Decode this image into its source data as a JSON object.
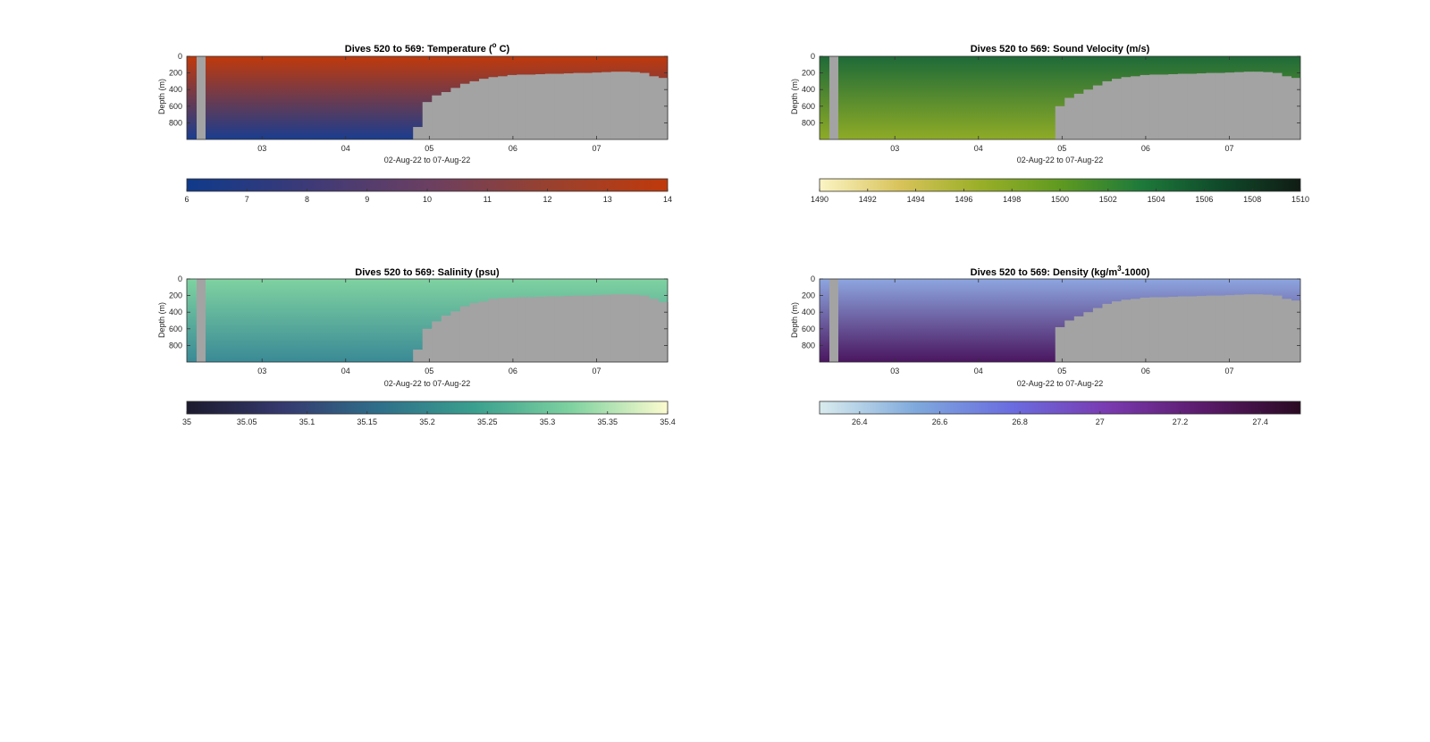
{
  "chart_data": [
    {
      "type": "heatmap",
      "title_main": "Dives 520 to 569: Temperature (",
      "title_sup": "o",
      "title_tail": " C)",
      "ylabel": "Depth (m)",
      "xlabel": "02-Aug-22 to 07-Aug-22",
      "x_ticks": [
        "03",
        "04",
        "05",
        "06",
        "07"
      ],
      "x_range": [
        2.1,
        7.85
      ],
      "y_ticks": [
        "0",
        "200",
        "400",
        "600",
        "800"
      ],
      "y_range": [
        0,
        1000
      ],
      "colorbar": {
        "ticks": [
          "6",
          "7",
          "8",
          "9",
          "10",
          "11",
          "12",
          "13",
          "14"
        ],
        "range": [
          6,
          14
        ],
        "colors": [
          "#0f3a8a",
          "#3d3a78",
          "#6a3f62",
          "#98412f",
          "#c0390b"
        ]
      },
      "surface_color": "#c0390b",
      "deep_color": "#1a3d8f",
      "no_data_color": "#a3a3a3",
      "profile_bottom_depth": [
        1000,
        1000,
        1000,
        1000,
        1000,
        1000,
        1000,
        1000,
        1000,
        1000,
        1000,
        1000,
        1000,
        1000,
        1000,
        1000,
        1000,
        1000,
        1000,
        1000,
        1000,
        1000,
        1000,
        1000,
        850,
        550,
        470,
        430,
        380,
        330,
        300,
        270,
        250,
        240,
        225,
        220,
        220,
        215,
        210,
        210,
        205,
        200,
        200,
        195,
        190,
        185,
        185,
        190,
        200,
        240,
        260
      ]
    },
    {
      "type": "heatmap",
      "title_main": "Dives 520 to 569: Sound Velocity (m/s)",
      "title_sup": "",
      "title_tail": "",
      "ylabel": "Depth (m)",
      "xlabel": "02-Aug-22 to 07-Aug-22",
      "x_ticks": [
        "03",
        "04",
        "05",
        "06",
        "07"
      ],
      "x_range": [
        2.1,
        7.85
      ],
      "y_ticks": [
        "0",
        "200",
        "400",
        "600",
        "800"
      ],
      "y_range": [
        0,
        1000
      ],
      "colorbar": {
        "ticks": [
          "1490",
          "1492",
          "1494",
          "1496",
          "1498",
          "1500",
          "1502",
          "1504",
          "1506",
          "1508",
          "1510"
        ],
        "range": [
          1490,
          1510
        ],
        "colors": [
          "#fbf4c4",
          "#d8c35a",
          "#9aaf28",
          "#5f9a20",
          "#1e7a3a",
          "#0f4a2a",
          "#101c14"
        ]
      },
      "surface_color": "#1e6a38",
      "deep_color": "#8eab26",
      "no_data_color": "#a3a3a3",
      "profile_bottom_depth": [
        1000,
        1000,
        1000,
        1000,
        1000,
        1000,
        1000,
        1000,
        1000,
        1000,
        1000,
        1000,
        1000,
        1000,
        1000,
        1000,
        1000,
        1000,
        1000,
        1000,
        1000,
        1000,
        1000,
        1000,
        1000,
        600,
        500,
        450,
        400,
        350,
        300,
        270,
        250,
        240,
        225,
        220,
        220,
        215,
        210,
        210,
        205,
        200,
        200,
        195,
        190,
        185,
        185,
        190,
        200,
        240,
        260
      ]
    },
    {
      "type": "heatmap",
      "title_main": "Dives 520 to 569: Salinity (psu)",
      "title_sup": "",
      "title_tail": "",
      "ylabel": "Depth (m)",
      "xlabel": "02-Aug-22 to 07-Aug-22",
      "x_ticks": [
        "03",
        "04",
        "05",
        "06",
        "07"
      ],
      "x_range": [
        2.1,
        7.85
      ],
      "y_ticks": [
        "0",
        "200",
        "400",
        "600",
        "800"
      ],
      "y_range": [
        0,
        1000
      ],
      "colorbar": {
        "ticks": [
          "35",
          "35.05",
          "35.1",
          "35.15",
          "35.2",
          "35.25",
          "35.3",
          "35.35",
          "35.4"
        ],
        "range": [
          35,
          35.4
        ],
        "colors": [
          "#1c1a2e",
          "#35396e",
          "#2f6f8a",
          "#3aa08e",
          "#7fd2a0",
          "#fdfbcf"
        ]
      },
      "surface_color": "#7fd2a0",
      "deep_color": "#3a8a96",
      "no_data_color": "#a3a3a3",
      "profile_bottom_depth": [
        1000,
        1000,
        1000,
        1000,
        1000,
        1000,
        1000,
        1000,
        1000,
        1000,
        1000,
        1000,
        1000,
        1000,
        1000,
        1000,
        1000,
        1000,
        1000,
        1000,
        1000,
        1000,
        1000,
        1000,
        850,
        600,
        510,
        440,
        390,
        330,
        290,
        270,
        240,
        230,
        225,
        220,
        220,
        215,
        210,
        210,
        205,
        200,
        200,
        195,
        190,
        185,
        185,
        190,
        200,
        240,
        280
      ]
    },
    {
      "type": "heatmap",
      "title_main": "Dives 520 to 569: Density (kg/m",
      "title_sup": "3",
      "title_tail": "-1000)",
      "ylabel": "Depth (m)",
      "xlabel": "02-Aug-22 to 07-Aug-22",
      "x_ticks": [
        "03",
        "04",
        "05",
        "06",
        "07"
      ],
      "x_range": [
        2.1,
        7.85
      ],
      "y_ticks": [
        "0",
        "200",
        "400",
        "600",
        "800"
      ],
      "y_range": [
        0,
        1000
      ],
      "colorbar": {
        "ticks": [
          "26.4",
          "26.6",
          "26.8",
          "27",
          "27.2",
          "27.4"
        ],
        "range": [
          26.3,
          27.5
        ],
        "colors": [
          "#d9ecee",
          "#7fa9dc",
          "#6a6ce0",
          "#7a3ab0",
          "#5a1a6a",
          "#2a0a22"
        ]
      },
      "surface_color": "#8da6e0",
      "deep_color": "#4a1660",
      "no_data_color": "#a3a3a3",
      "profile_bottom_depth": [
        1000,
        1000,
        1000,
        1000,
        1000,
        1000,
        1000,
        1000,
        1000,
        1000,
        1000,
        1000,
        1000,
        1000,
        1000,
        1000,
        1000,
        1000,
        1000,
        1000,
        1000,
        1000,
        1000,
        1000,
        1000,
        580,
        500,
        450,
        400,
        350,
        300,
        270,
        250,
        240,
        225,
        220,
        220,
        215,
        210,
        210,
        205,
        200,
        200,
        195,
        190,
        185,
        185,
        190,
        200,
        240,
        260
      ]
    }
  ]
}
